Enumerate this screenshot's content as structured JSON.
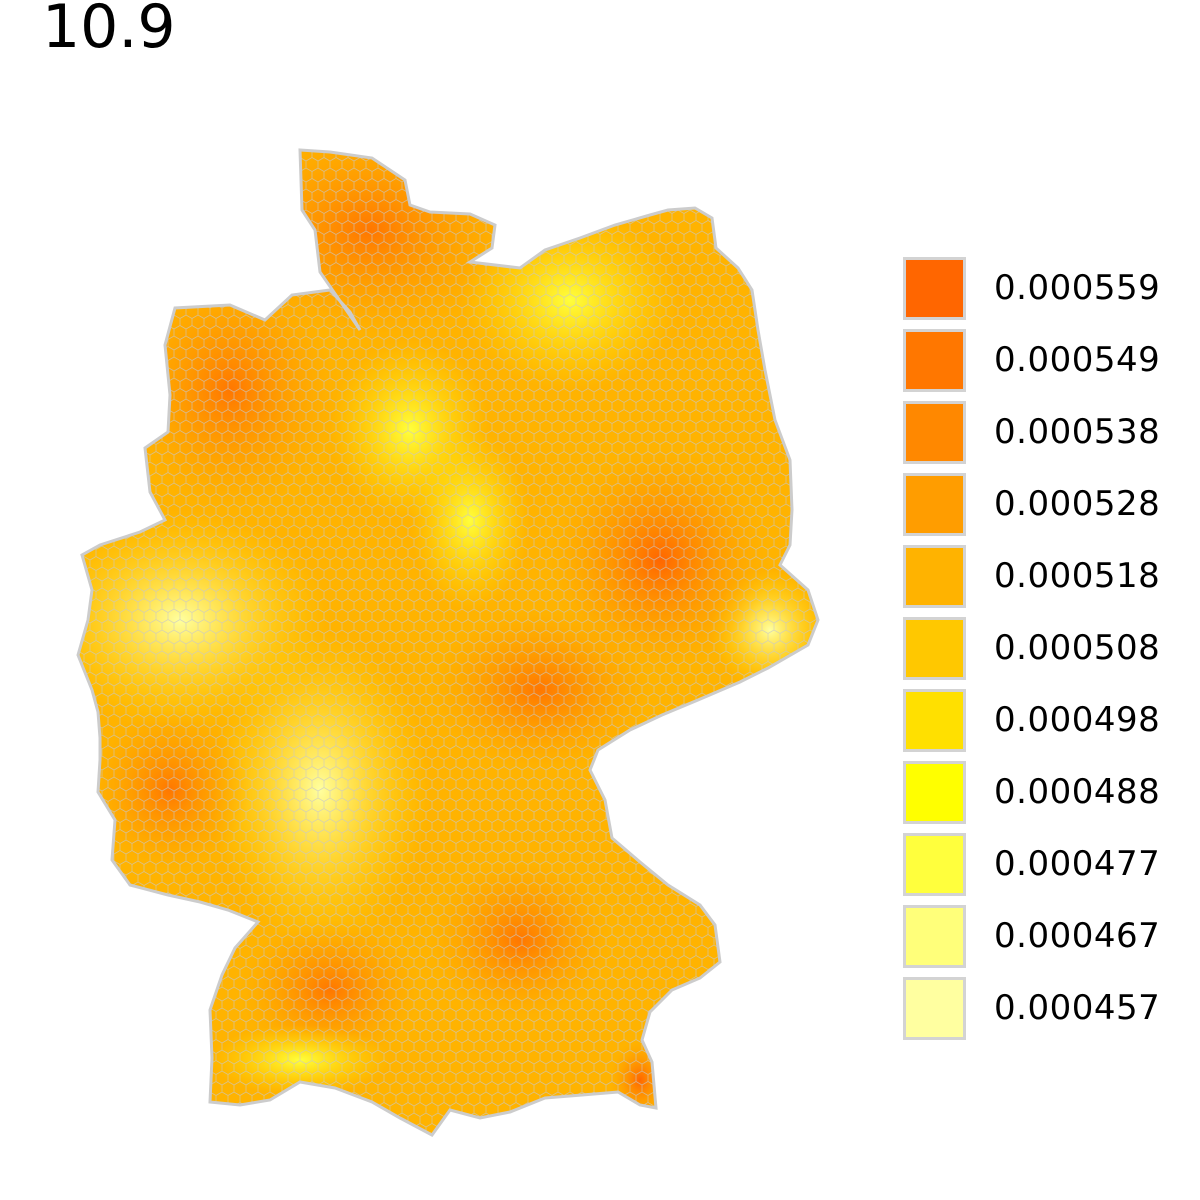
{
  "title": "10.9",
  "legend": {
    "items": [
      {
        "label": "0.000559",
        "color": "#FF6600"
      },
      {
        "label": "0.000549",
        "color": "#FF7700"
      },
      {
        "label": "0.000538",
        "color": "#FF8800"
      },
      {
        "label": "0.000528",
        "color": "#FF9D00"
      },
      {
        "label": "0.000518",
        "color": "#FFB300"
      },
      {
        "label": "0.000508",
        "color": "#FFC800"
      },
      {
        "label": "0.000498",
        "color": "#FFE000"
      },
      {
        "label": "0.000488",
        "color": "#FFFF00"
      },
      {
        "label": "0.000477",
        "color": "#FFFF3D"
      },
      {
        "label": "0.000467",
        "color": "#FFFF7A"
      },
      {
        "label": "0.000457",
        "color": "#FFFFA0"
      }
    ]
  },
  "map": {
    "region": "Germany",
    "cell_shape": "hexagon",
    "border_color": "#cccccc"
  }
}
